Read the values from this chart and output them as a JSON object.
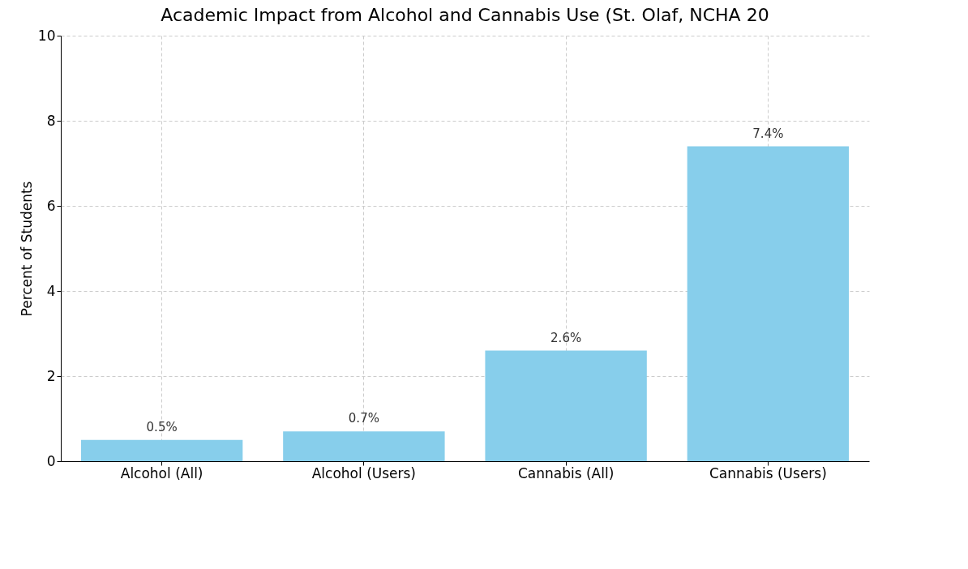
{
  "chart_data": {
    "type": "bar",
    "title": "Academic Impact from Alcohol and Cannabis Use (St. Olaf, NCHA 20",
    "ylabel": "Percent of Students",
    "categories": [
      "Alcohol (All)",
      "Alcohol (Users)",
      "Cannabis (All)",
      "Cannabis (Users)"
    ],
    "values": [
      0.5,
      0.7,
      2.6,
      7.4
    ],
    "color": "#87ceeb",
    "value_labels": [
      "0.5%",
      "0.7%",
      "2.6%",
      "7.4%"
    ],
    "ylim": [
      0,
      10
    ],
    "yticks": [
      0,
      2,
      4,
      6,
      8,
      10
    ],
    "grid": true
  }
}
